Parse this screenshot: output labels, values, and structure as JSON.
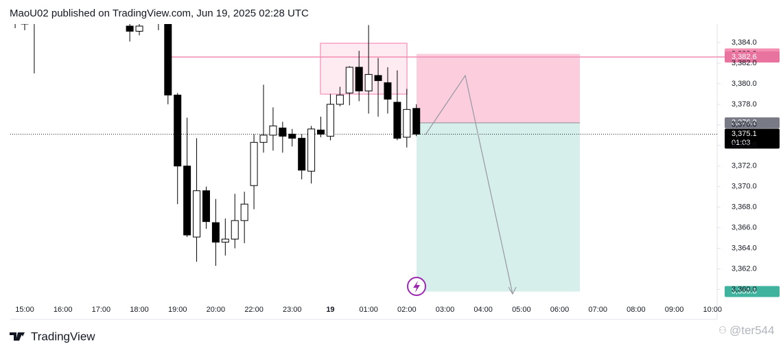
{
  "chart_data": {
    "type": "candlestick",
    "title": "MaoU02 published on TradingView.com, Jun 19, 2025 02:28 UTC",
    "categories": [
      "15:00",
      "16:00",
      "17:00",
      "18:00",
      "19:00",
      "20:00",
      "22:00",
      "23:00",
      "19",
      "01:00",
      "02:00",
      "03:00",
      "04:00",
      "05:00",
      "06:00",
      "07:00",
      "08:00",
      "09:00",
      "10:00"
    ],
    "open": [
      3386.2,
      3386.0,
      3386.5,
      null,
      null,
      null,
      null,
      null,
      null,
      null,
      null,
      null,
      3385.6,
      3385.1,
      null,
      3386.3,
      3386.4,
      3378.9,
      3372.0,
      3365.1,
      3369.6,
      3366.5,
      3364.6,
      3364.9,
      3366.7,
      3370.1,
      3374.3,
      3375.0,
      3375.7,
      3375.1,
      3374.7,
      3371.5,
      3375.5,
      3374.9,
      3378.0,
      3379.1,
      3381.6,
      3379.3,
      3380.8,
      3380.1,
      3378.2,
      3374.8,
      3377.6
    ],
    "high": [
      3386.5,
      3386.2,
      3387.0,
      null,
      null,
      null,
      null,
      null,
      null,
      null,
      null,
      null,
      3386.0,
      3386.0,
      null,
      3386.5,
      3386.6,
      3379.1,
      3376.7,
      3374.7,
      3370.0,
      3368.8,
      3366.9,
      3369.3,
      3369.5,
      3375.1,
      3379.9,
      3377.7,
      3376.3,
      3375.6,
      3375.1,
      3375.9,
      3376.8,
      3379.0,
      3379.7,
      3381.7,
      3383.2,
      3385.7,
      3382.5,
      3381.6,
      3381.3,
      3379.5,
      3378.0
    ],
    "low": [
      3385.4,
      3385.2,
      3381.0,
      null,
      null,
      null,
      null,
      null,
      null,
      null,
      null,
      null,
      3384.1,
      3384.7,
      null,
      3385.2,
      3378.0,
      3368.3,
      3365.1,
      3362.7,
      3365.9,
      3362.3,
      3363.3,
      3364.0,
      3364.5,
      3367.8,
      3373.3,
      3373.5,
      3373.3,
      3373.9,
      3370.7,
      3370.3,
      3374.8,
      3374.5,
      3377.8,
      3377.9,
      3378.3,
      3377.1,
      3376.8,
      3377.1,
      3374.5,
      3373.8,
      3374.9
    ],
    "close": [
      3385.9,
      3385.8,
      3386.0,
      null,
      null,
      null,
      null,
      null,
      null,
      null,
      null,
      null,
      3385.1,
      3385.6,
      null,
      3386.0,
      3378.9,
      3372.0,
      3365.3,
      3369.6,
      3366.6,
      3364.6,
      3364.9,
      3366.7,
      3368.3,
      3374.3,
      3375.0,
      3375.9,
      3374.9,
      3374.7,
      3371.6,
      3375.6,
      3375.1,
      3378.0,
      3378.9,
      3381.6,
      3379.3,
      3380.9,
      3380.3,
      3378.5,
      3374.7,
      3377.5,
      3375.1
    ],
    "ylim": [
      3357.1,
      3385.8
    ],
    "yticks": [
      {
        "value": 3360,
        "label": "3,360.0"
      },
      {
        "value": 3362,
        "label": "3,362.0"
      },
      {
        "value": 3364,
        "label": "3,364.0"
      },
      {
        "value": 3366,
        "label": "3,366.0"
      },
      {
        "value": 3368,
        "label": "3,368.0"
      },
      {
        "value": 3370,
        "label": "3,370.0"
      },
      {
        "value": 3372,
        "label": "3,372.0"
      },
      {
        "value": 3374,
        "label": "3,374.0"
      },
      {
        "value": 3376,
        "label": "3,376.0"
      },
      {
        "value": 3378,
        "label": "3,378.0"
      },
      {
        "value": 3380,
        "label": "3,380.0"
      },
      {
        "value": 3382,
        "label": "3,382.0"
      },
      {
        "value": 3384,
        "label": "3,384.0"
      }
    ],
    "price_labels": [
      {
        "value": 3382.9,
        "label": "3,382.9",
        "color": "#f48fb1"
      },
      {
        "value": 3382.6,
        "label": "3,382.6",
        "color": "#e8739e"
      },
      {
        "value": 3376.2,
        "label": "3,376.2",
        "color": "#787b86"
      },
      {
        "value": 3375.1,
        "label": "3,375.1",
        "color": "#000000"
      },
      {
        "value": 3359.8,
        "label": "3,359.8",
        "color": "#3fb39d"
      }
    ],
    "countdown": "01:03",
    "brand": "TradingView",
    "watermark": "@ter544"
  }
}
